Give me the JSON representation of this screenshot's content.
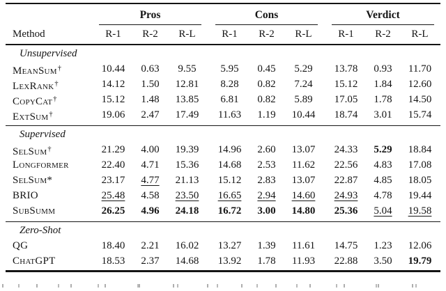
{
  "header": {
    "method_label": "Method",
    "groups": [
      {
        "label": "Pros",
        "cols": [
          "R-1",
          "R-2",
          "R-L"
        ]
      },
      {
        "label": "Cons",
        "cols": [
          "R-1",
          "R-2",
          "R-L"
        ]
      },
      {
        "label": "Verdict",
        "cols": [
          "R-1",
          "R-2",
          "R-L"
        ]
      }
    ]
  },
  "sections": [
    {
      "label": "Unsupervised",
      "rows": [
        {
          "method": "MeanSum",
          "mark": "†",
          "values": [
            "10.44",
            "0.63",
            "9.55",
            "5.95",
            "0.45",
            "5.29",
            "13.78",
            "0.93",
            "11.70"
          ],
          "styles": [
            "",
            "",
            "",
            "",
            "",
            "",
            "",
            "",
            ""
          ]
        },
        {
          "method": "LexRank",
          "mark": "†",
          "values": [
            "14.12",
            "1.50",
            "12.81",
            "8.28",
            "0.82",
            "7.24",
            "15.12",
            "1.84",
            "12.60"
          ],
          "styles": [
            "",
            "",
            "",
            "",
            "",
            "",
            "",
            "",
            ""
          ]
        },
        {
          "method": "CopyCat",
          "mark": "†",
          "values": [
            "15.12",
            "1.48",
            "13.85",
            "6.81",
            "0.82",
            "5.89",
            "17.05",
            "1.78",
            "14.50"
          ],
          "styles": [
            "",
            "",
            "",
            "",
            "",
            "",
            "",
            "",
            ""
          ]
        },
        {
          "method": "ExtSum",
          "mark": "†",
          "values": [
            "19.06",
            "2.47",
            "17.49",
            "11.63",
            "1.19",
            "10.44",
            "18.74",
            "3.01",
            "15.74"
          ],
          "styles": [
            "",
            "",
            "",
            "",
            "",
            "",
            "",
            "",
            ""
          ]
        }
      ]
    },
    {
      "label": "Supervised",
      "rows": [
        {
          "method": "SelSum",
          "mark": "†",
          "values": [
            "21.29",
            "4.00",
            "19.39",
            "14.96",
            "2.60",
            "13.07",
            "24.33",
            "5.29",
            "18.84"
          ],
          "styles": [
            "",
            "",
            "",
            "",
            "",
            "",
            "",
            "b",
            ""
          ]
        },
        {
          "method": "Longformer",
          "mark": "",
          "values": [
            "22.40",
            "4.71",
            "15.36",
            "14.68",
            "2.53",
            "11.62",
            "22.56",
            "4.83",
            "17.08"
          ],
          "styles": [
            "",
            "",
            "",
            "",
            "",
            "",
            "",
            "",
            ""
          ]
        },
        {
          "method": "SelSum",
          "mark": "*",
          "values": [
            "23.17",
            "4.77",
            "21.13",
            "15.12",
            "2.83",
            "13.07",
            "22.87",
            "4.85",
            "18.05"
          ],
          "styles": [
            "",
            "u",
            "",
            "",
            "",
            "",
            "",
            "",
            ""
          ]
        },
        {
          "method": "BRIO",
          "mark": "",
          "values": [
            "25.48",
            "4.58",
            "23.50",
            "16.65",
            "2.94",
            "14.60",
            "24.93",
            "4.78",
            "19.44"
          ],
          "styles": [
            "u",
            "",
            "u",
            "u",
            "u",
            "u",
            "u",
            "",
            ""
          ]
        },
        {
          "method": "SubSumm",
          "mark": "",
          "values": [
            "26.25",
            "4.96",
            "24.18",
            "16.72",
            "3.00",
            "14.80",
            "25.36",
            "5.04",
            "19.58"
          ],
          "styles": [
            "b",
            "b",
            "b",
            "b",
            "b",
            "b",
            "b",
            "u",
            "u"
          ]
        }
      ]
    },
    {
      "label": "Zero-Shot",
      "rows": [
        {
          "method": "QG",
          "mark": "",
          "values": [
            "18.40",
            "2.21",
            "16.02",
            "13.27",
            "1.39",
            "11.61",
            "14.75",
            "1.23",
            "12.06"
          ],
          "styles": [
            "",
            "",
            "",
            "",
            "",
            "",
            "",
            "",
            ""
          ]
        },
        {
          "method": "ChatGPT",
          "mark": "",
          "values": [
            "18.53",
            "2.37",
            "14.68",
            "13.92",
            "1.78",
            "11.93",
            "22.88",
            "3.50",
            "19.79"
          ],
          "styles": [
            "",
            "",
            "",
            "",
            "",
            "",
            "",
            "",
            "b"
          ]
        }
      ]
    }
  ]
}
